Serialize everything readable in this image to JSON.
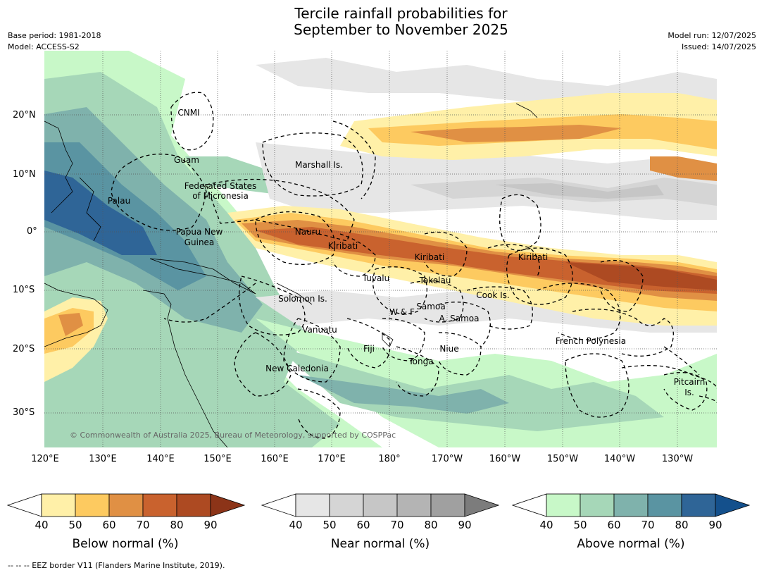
{
  "title_line1": "Tercile rainfall probabilities for",
  "title_line2": "September to November 2025",
  "base_period": "Base period: 1981-2018",
  "model": "Model: ACCESS-S2",
  "model_run": "Model run: 12/07/2025",
  "issued": "Issued: 14/07/2025",
  "copyright": "© Commonwealth of Australia 2025, Bureau of Meteorology, supported by COSPPac",
  "footnote": "--  --  -- EEZ border V11 (Flanders Marine Institute, 2019).",
  "lat_labels": [
    "20°N",
    "10°N",
    "0°",
    "10°S",
    "20°S",
    "30°S"
  ],
  "lon_labels": [
    "120°E",
    "130°E",
    "140°E",
    "150°E",
    "160°E",
    "170°E",
    "180°",
    "170°W",
    "160°W",
    "150°W",
    "140°W",
    "130°W"
  ],
  "region_labels": [
    "CNMI",
    "Guam",
    "Marshall Is.",
    "Federated States",
    "of Micronesia",
    "Palau",
    "Papua New",
    "Guinea",
    "Nauru",
    "Kiribati",
    "Kiribati",
    "Kiribati",
    "Tuvalu",
    "Tokelau",
    "Cook Is.",
    "Solomon Is.",
    "Samoa",
    "W & F",
    "A. Samoa",
    "Vanuatu",
    "Fiji",
    "Niue",
    "Tonga",
    "French Polynesia",
    "New Caledonia",
    "Pitcairn",
    "Is."
  ],
  "colorbars": [
    {
      "label": "Below normal (%)",
      "ticks": [
        "40",
        "50",
        "60",
        "70",
        "80",
        "90"
      ],
      "colors": [
        "#fff0a8",
        "#fdca60",
        "#e09044",
        "#c9622e",
        "#ad4a22",
        "#8c3418"
      ]
    },
    {
      "label": "Near normal (%)",
      "ticks": [
        "40",
        "50",
        "60",
        "70",
        "80",
        "90"
      ],
      "colors": [
        "#e6e6e6",
        "#d5d5d5",
        "#c6c6c6",
        "#b4b4b4",
        "#a0a0a0",
        "#7c7c7c"
      ]
    },
    {
      "label": "Above normal (%)",
      "ticks": [
        "40",
        "50",
        "60",
        "70",
        "80",
        "90"
      ],
      "colors": [
        "#c8f8c8",
        "#a6d7b8",
        "#7fb2ac",
        "#5a94a2",
        "#2f6597",
        "#14508c"
      ]
    }
  ]
}
